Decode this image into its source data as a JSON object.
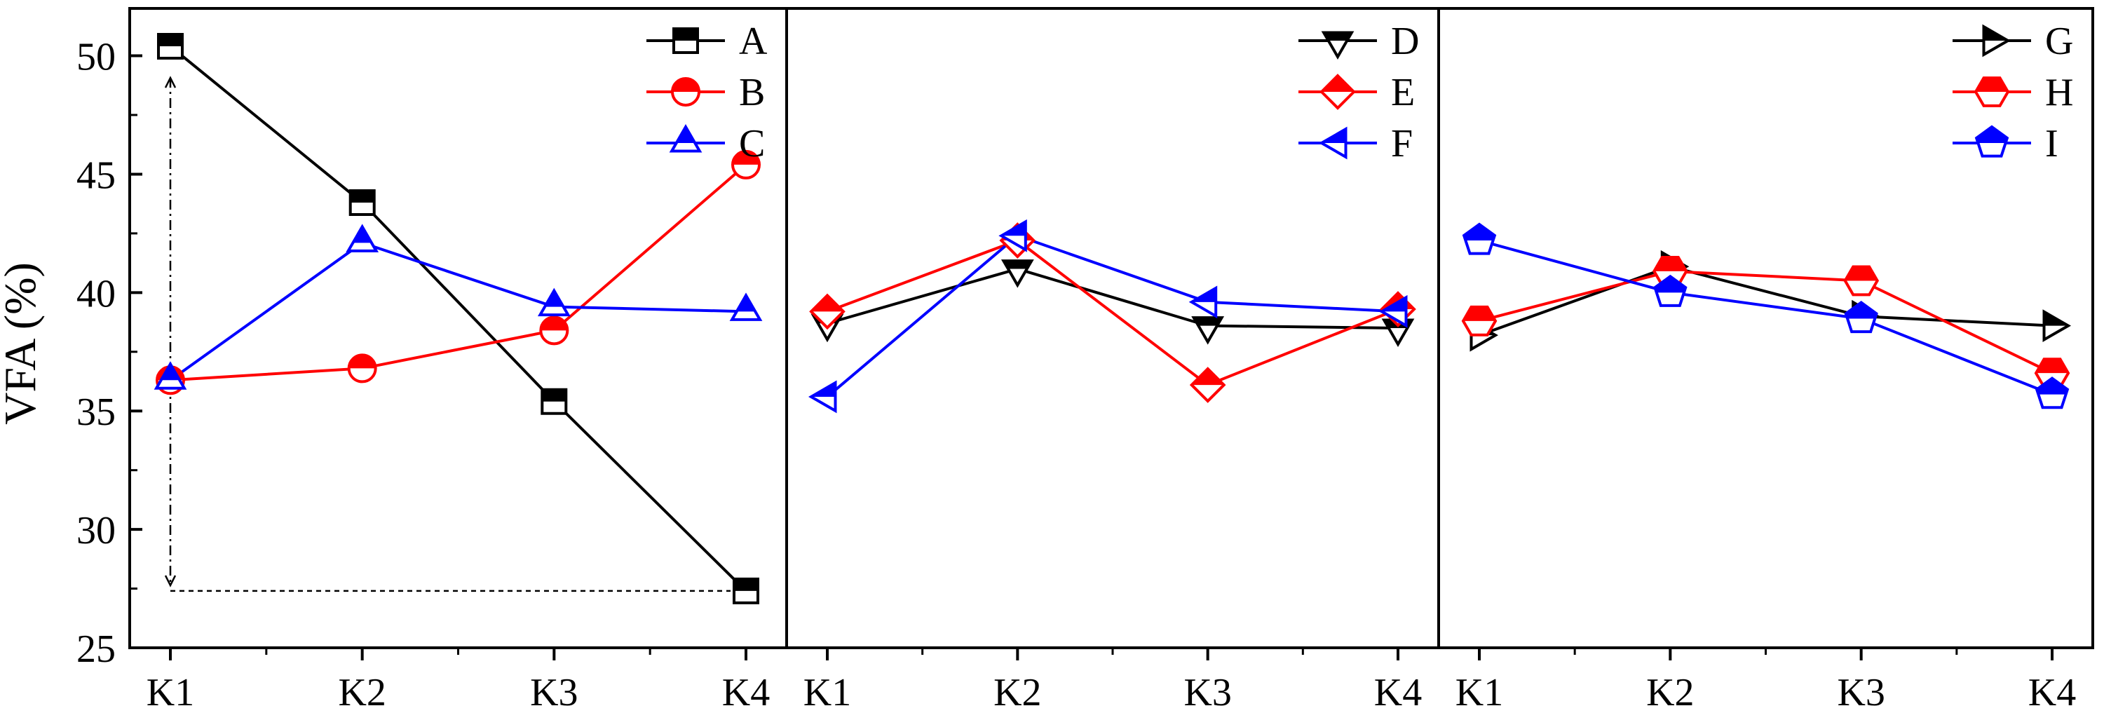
{
  "chart_data": {
    "type": "line",
    "ylabel": "VFA (%)",
    "ylim": [
      25,
      52
    ],
    "yticks": [
      25,
      30,
      35,
      40,
      45,
      50
    ],
    "categories": [
      "K1",
      "K2",
      "K3",
      "K4"
    ],
    "grid": false,
    "legend_position": "top-right",
    "panels": [
      {
        "series": [
          {
            "name": "A",
            "color": "#000000",
            "marker": "square",
            "values": [
              50.4,
              43.8,
              35.4,
              27.4
            ]
          },
          {
            "name": "B",
            "color": "#ff0000",
            "marker": "circle",
            "values": [
              36.3,
              36.8,
              38.4,
              45.4
            ]
          },
          {
            "name": "C",
            "color": "#0000ff",
            "marker": "triangle-up",
            "values": [
              36.3,
              42.1,
              39.4,
              39.2
            ]
          }
        ]
      },
      {
        "series": [
          {
            "name": "D",
            "color": "#000000",
            "marker": "triangle-down",
            "values": [
              38.7,
              41.0,
              38.6,
              38.5
            ]
          },
          {
            "name": "E",
            "color": "#ff0000",
            "marker": "diamond",
            "values": [
              39.2,
              42.2,
              36.1,
              39.3
            ]
          },
          {
            "name": "F",
            "color": "#0000ff",
            "marker": "triangle-left",
            "values": [
              35.6,
              42.4,
              39.6,
              39.2
            ]
          }
        ]
      },
      {
        "series": [
          {
            "name": "G",
            "color": "#000000",
            "marker": "triangle-right",
            "values": [
              38.2,
              41.1,
              39.0,
              38.6
            ]
          },
          {
            "name": "H",
            "color": "#ff0000",
            "marker": "hexagon",
            "values": [
              38.8,
              40.9,
              40.5,
              36.6
            ]
          },
          {
            "name": "I",
            "color": "#0000ff",
            "marker": "pentagon",
            "values": [
              42.2,
              40.0,
              38.9,
              35.7
            ]
          }
        ]
      }
    ]
  }
}
